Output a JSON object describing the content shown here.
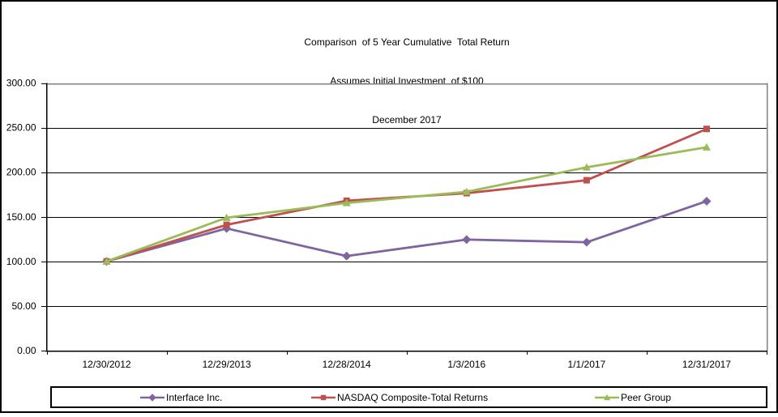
{
  "title": {
    "line1": "Comparison  of 5 Year Cumulative  Total Return",
    "line2": "Assumes Initial Investment  of $100",
    "line3": "December 2017"
  },
  "chart_data": {
    "type": "line",
    "categories": [
      "12/30/2012",
      "12/29/2013",
      "12/28/2014",
      "1/3/2016",
      "1/1/2017",
      "12/31/2017"
    ],
    "series": [
      {
        "name": "Interface Inc.",
        "color": "#8064A2",
        "marker": "diamond",
        "values": [
          100.0,
          137.0,
          106.0,
          124.5,
          121.5,
          167.5
        ]
      },
      {
        "name": "NASDAQ Composite-Total Returns",
        "color": "#C0504D",
        "marker": "square",
        "values": [
          100.0,
          141.0,
          168.0,
          176.5,
          191.0,
          248.5
        ]
      },
      {
        "name": "Peer Group",
        "color": "#9BBB59",
        "marker": "triangle",
        "values": [
          100.0,
          149.0,
          165.5,
          178.0,
          205.5,
          228.0
        ]
      }
    ],
    "title": "Comparison of 5 Year Cumulative Total Return",
    "subtitle": "Assumes Initial Investment of $100",
    "date_line": "December 2017",
    "xlabel": "",
    "ylabel": "",
    "ylim": [
      0,
      300
    ],
    "ytick_values": [
      300,
      250,
      200,
      150,
      100,
      50,
      0
    ],
    "ytick_labels": [
      "300.00",
      "250.00",
      "200.00",
      "150.00",
      "100.00",
      "50.00",
      "0.00"
    ],
    "grid": true,
    "legend_position": "bottom",
    "axis_color": "#000000",
    "plot_border_color": "#808080",
    "gridline_color": "#000000"
  }
}
